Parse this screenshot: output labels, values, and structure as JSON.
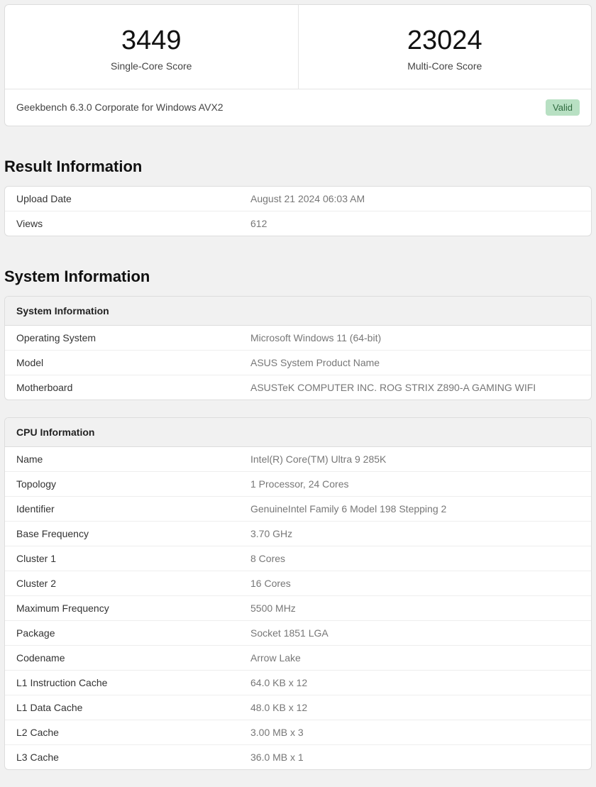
{
  "scores": {
    "single": {
      "value": "3449",
      "label": "Single-Core Score"
    },
    "multi": {
      "value": "23024",
      "label": "Multi-Core Score"
    },
    "version_text": "Geekbench 6.3.0 Corporate for Windows AVX2",
    "valid_badge": "Valid"
  },
  "colors": {
    "page_bg": "#f1f1f1",
    "card_bg": "#ffffff",
    "border": "#dddddd",
    "row_border": "#eeeeee",
    "key_text": "#333333",
    "val_text": "#777777",
    "badge_bg": "#b8e0c3",
    "badge_text": "#2f6b3f"
  },
  "sections": {
    "result_info_title": "Result Information",
    "system_info_title": "System Information"
  },
  "result_info": {
    "rows": [
      {
        "key": "Upload Date",
        "val": "August 21 2024 06:03 AM"
      },
      {
        "key": "Views",
        "val": "612"
      }
    ]
  },
  "system_info": {
    "header": "System Information",
    "rows": [
      {
        "key": "Operating System",
        "val": "Microsoft Windows 11 (64-bit)"
      },
      {
        "key": "Model",
        "val": "ASUS System Product Name"
      },
      {
        "key": "Motherboard",
        "val": "ASUSTeK COMPUTER INC. ROG STRIX Z890-A GAMING WIFI"
      }
    ]
  },
  "cpu_info": {
    "header": "CPU Information",
    "rows": [
      {
        "key": "Name",
        "val": "Intel(R) Core(TM) Ultra 9 285K"
      },
      {
        "key": "Topology",
        "val": "1 Processor, 24 Cores"
      },
      {
        "key": "Identifier",
        "val": "GenuineIntel Family 6 Model 198 Stepping 2"
      },
      {
        "key": "Base Frequency",
        "val": "3.70 GHz"
      },
      {
        "key": "Cluster 1",
        "val": "8 Cores"
      },
      {
        "key": "Cluster 2",
        "val": "16 Cores"
      },
      {
        "key": "Maximum Frequency",
        "val": "5500 MHz"
      },
      {
        "key": "Package",
        "val": "Socket 1851 LGA"
      },
      {
        "key": "Codename",
        "val": "Arrow Lake"
      },
      {
        "key": "L1 Instruction Cache",
        "val": "64.0 KB x 12"
      },
      {
        "key": "L1 Data Cache",
        "val": "48.0 KB x 12"
      },
      {
        "key": "L2 Cache",
        "val": "3.00 MB x 3"
      },
      {
        "key": "L3 Cache",
        "val": "36.0 MB x 1"
      }
    ]
  }
}
